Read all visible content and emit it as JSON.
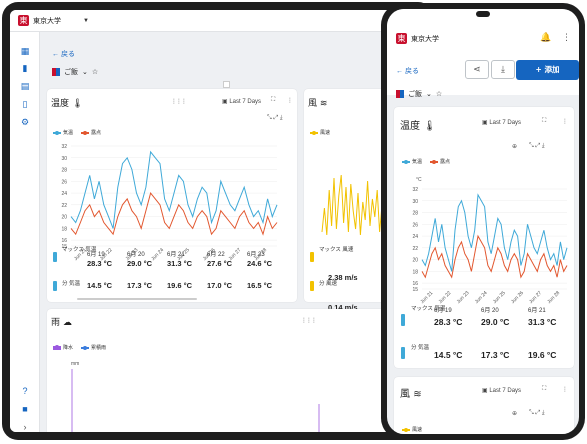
{
  "org": {
    "logo_char": "東",
    "name": "東京大学"
  },
  "nav": {
    "back_label": "戻る",
    "view_name": "ご飯",
    "add_label": "添加"
  },
  "temp_card": {
    "title": "温度",
    "range": "Last 7 Days",
    "legend": [
      "気温",
      "露点"
    ],
    "y_unit": "°C",
    "stats": {
      "max_label": "マックス 気温",
      "min_label": "分 気温",
      "dates": [
        "6月 19",
        "6月 20",
        "6月 21",
        "6月 22",
        "6月 23"
      ],
      "max_values": [
        "28.3 °C",
        "29.0 °C",
        "31.3 °C",
        "27.6 °C",
        "24.6 °C"
      ],
      "min_values": [
        "14.5 °C",
        "17.3 °C",
        "19.6 °C",
        "17.0 °C",
        "16.5 °C"
      ]
    }
  },
  "wind_card": {
    "title": "風",
    "range": "Last 7 Days",
    "legend": [
      "風速"
    ],
    "max_label": "マックス 風速",
    "min_label": "分 風速",
    "max_value": "2.38 m/s",
    "min_value": "0.14 m/s"
  },
  "rain_card": {
    "title": "雨",
    "legend": [
      "降水",
      "累積雨"
    ],
    "y_unit": "mm"
  },
  "chart_data": {
    "type": "line",
    "ylabel": "°C",
    "ylim": [
      15,
      32
    ],
    "y_ticks": [
      "32",
      "30",
      "28",
      "26",
      "24",
      "22",
      "20",
      "18",
      "16",
      "15"
    ],
    "x_ticks": [
      "Jun 21",
      "Jun 22",
      "Jun 23",
      "Jun 24",
      "Jun 25",
      "Jun 26",
      "Jun 27",
      "Jun 28"
    ],
    "series": [
      {
        "name": "気温",
        "color": "#3fa9d8",
        "values": [
          20,
          19,
          21,
          24,
          27,
          23,
          26,
          22,
          20,
          18,
          25,
          29,
          30,
          28,
          24,
          22,
          25,
          31,
          30,
          29,
          23,
          21,
          24,
          27,
          26,
          22,
          20,
          23,
          25,
          24,
          19,
          21,
          26,
          24,
          22,
          21,
          23,
          25,
          22,
          20,
          21,
          19,
          23,
          20,
          22
        ]
      },
      {
        "name": "露点",
        "color": "#e2572f",
        "values": [
          18,
          17,
          19,
          21,
          22,
          20,
          21,
          19,
          18,
          17,
          20,
          22,
          23,
          21,
          20,
          18,
          21,
          24,
          23,
          22,
          19,
          18,
          20,
          22,
          21,
          19,
          18,
          20,
          21,
          20,
          17,
          18,
          21,
          20,
          19,
          18,
          20,
          21,
          19,
          18,
          19,
          17,
          20,
          18,
          19
        ]
      }
    ]
  }
}
